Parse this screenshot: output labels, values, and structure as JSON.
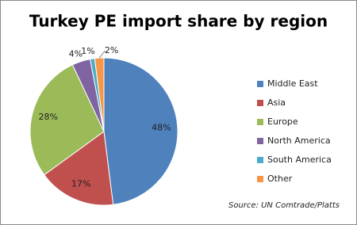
{
  "chart_data": {
    "type": "pie",
    "title": "Turkey PE import share by region",
    "categories": [
      "Middle East",
      "Asia",
      "Europe",
      "North America",
      "South America",
      "Other"
    ],
    "values": [
      48,
      17,
      28,
      4,
      1,
      2
    ],
    "value_labels": [
      "48%",
      "17%",
      "28%",
      "4%",
      "1%",
      "2%"
    ],
    "colors": [
      "#4f81bd",
      "#c0504d",
      "#9bbb59",
      "#8064a2",
      "#4bacc6",
      "#f79646"
    ],
    "legend": "right",
    "source": "Source: UN Comtrade/Platts"
  }
}
